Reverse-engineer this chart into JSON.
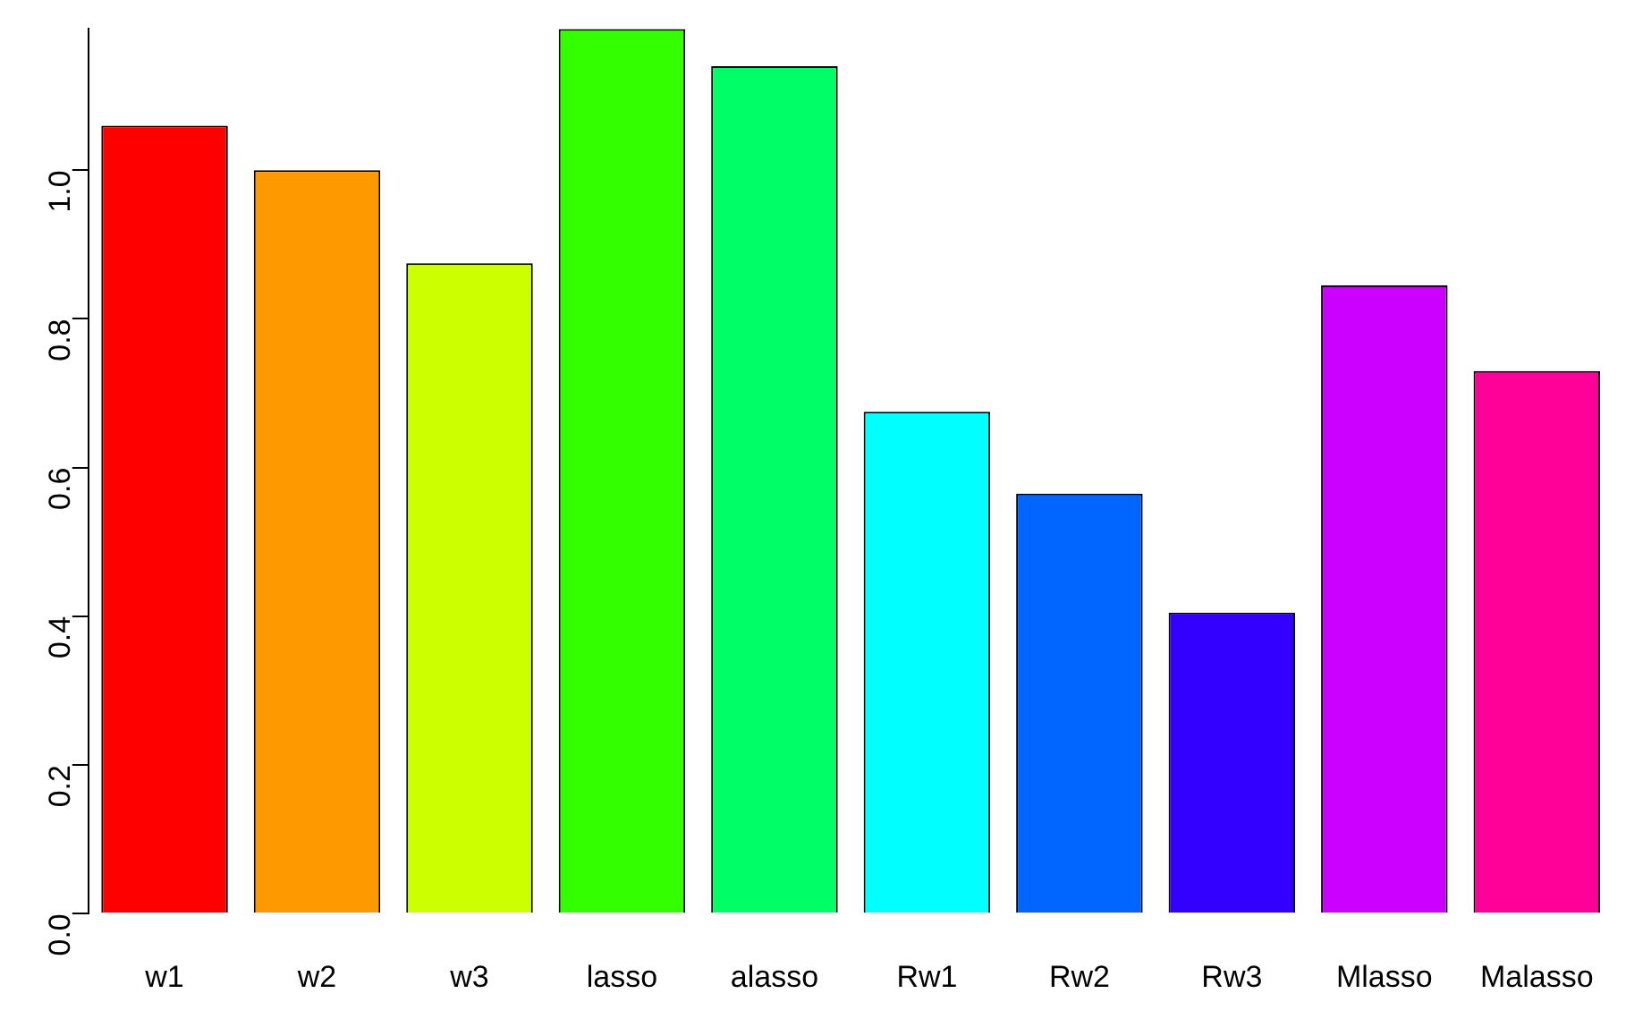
{
  "chart_data": {
    "type": "bar",
    "categories": [
      "w1",
      "w2",
      "w3",
      "lasso",
      "alasso",
      "Rw1",
      "Rw2",
      "Rw3",
      "Mlasso",
      "Malasso"
    ],
    "values": [
      1.06,
      1.0,
      0.875,
      1.19,
      1.14,
      0.675,
      0.565,
      0.405,
      0.845,
      0.73
    ],
    "colors": [
      "#ff0000",
      "#ff9900",
      "#ccff00",
      "#33ff00",
      "#00ff66",
      "#00ffff",
      "#0066ff",
      "#3300ff",
      "#cc00ff",
      "#ff0099"
    ],
    "ylim": [
      0,
      1.19
    ],
    "yticks": [
      {
        "value": 0,
        "label": "0.0"
      },
      {
        "value": 0.2,
        "label": "0.2"
      },
      {
        "value": 0.4,
        "label": "0.4"
      },
      {
        "value": 0.6,
        "label": "0.6"
      },
      {
        "value": 0.8,
        "label": "0.8"
      },
      {
        "value": 1,
        "label": "1.0"
      }
    ],
    "grid": false,
    "legend": false
  }
}
